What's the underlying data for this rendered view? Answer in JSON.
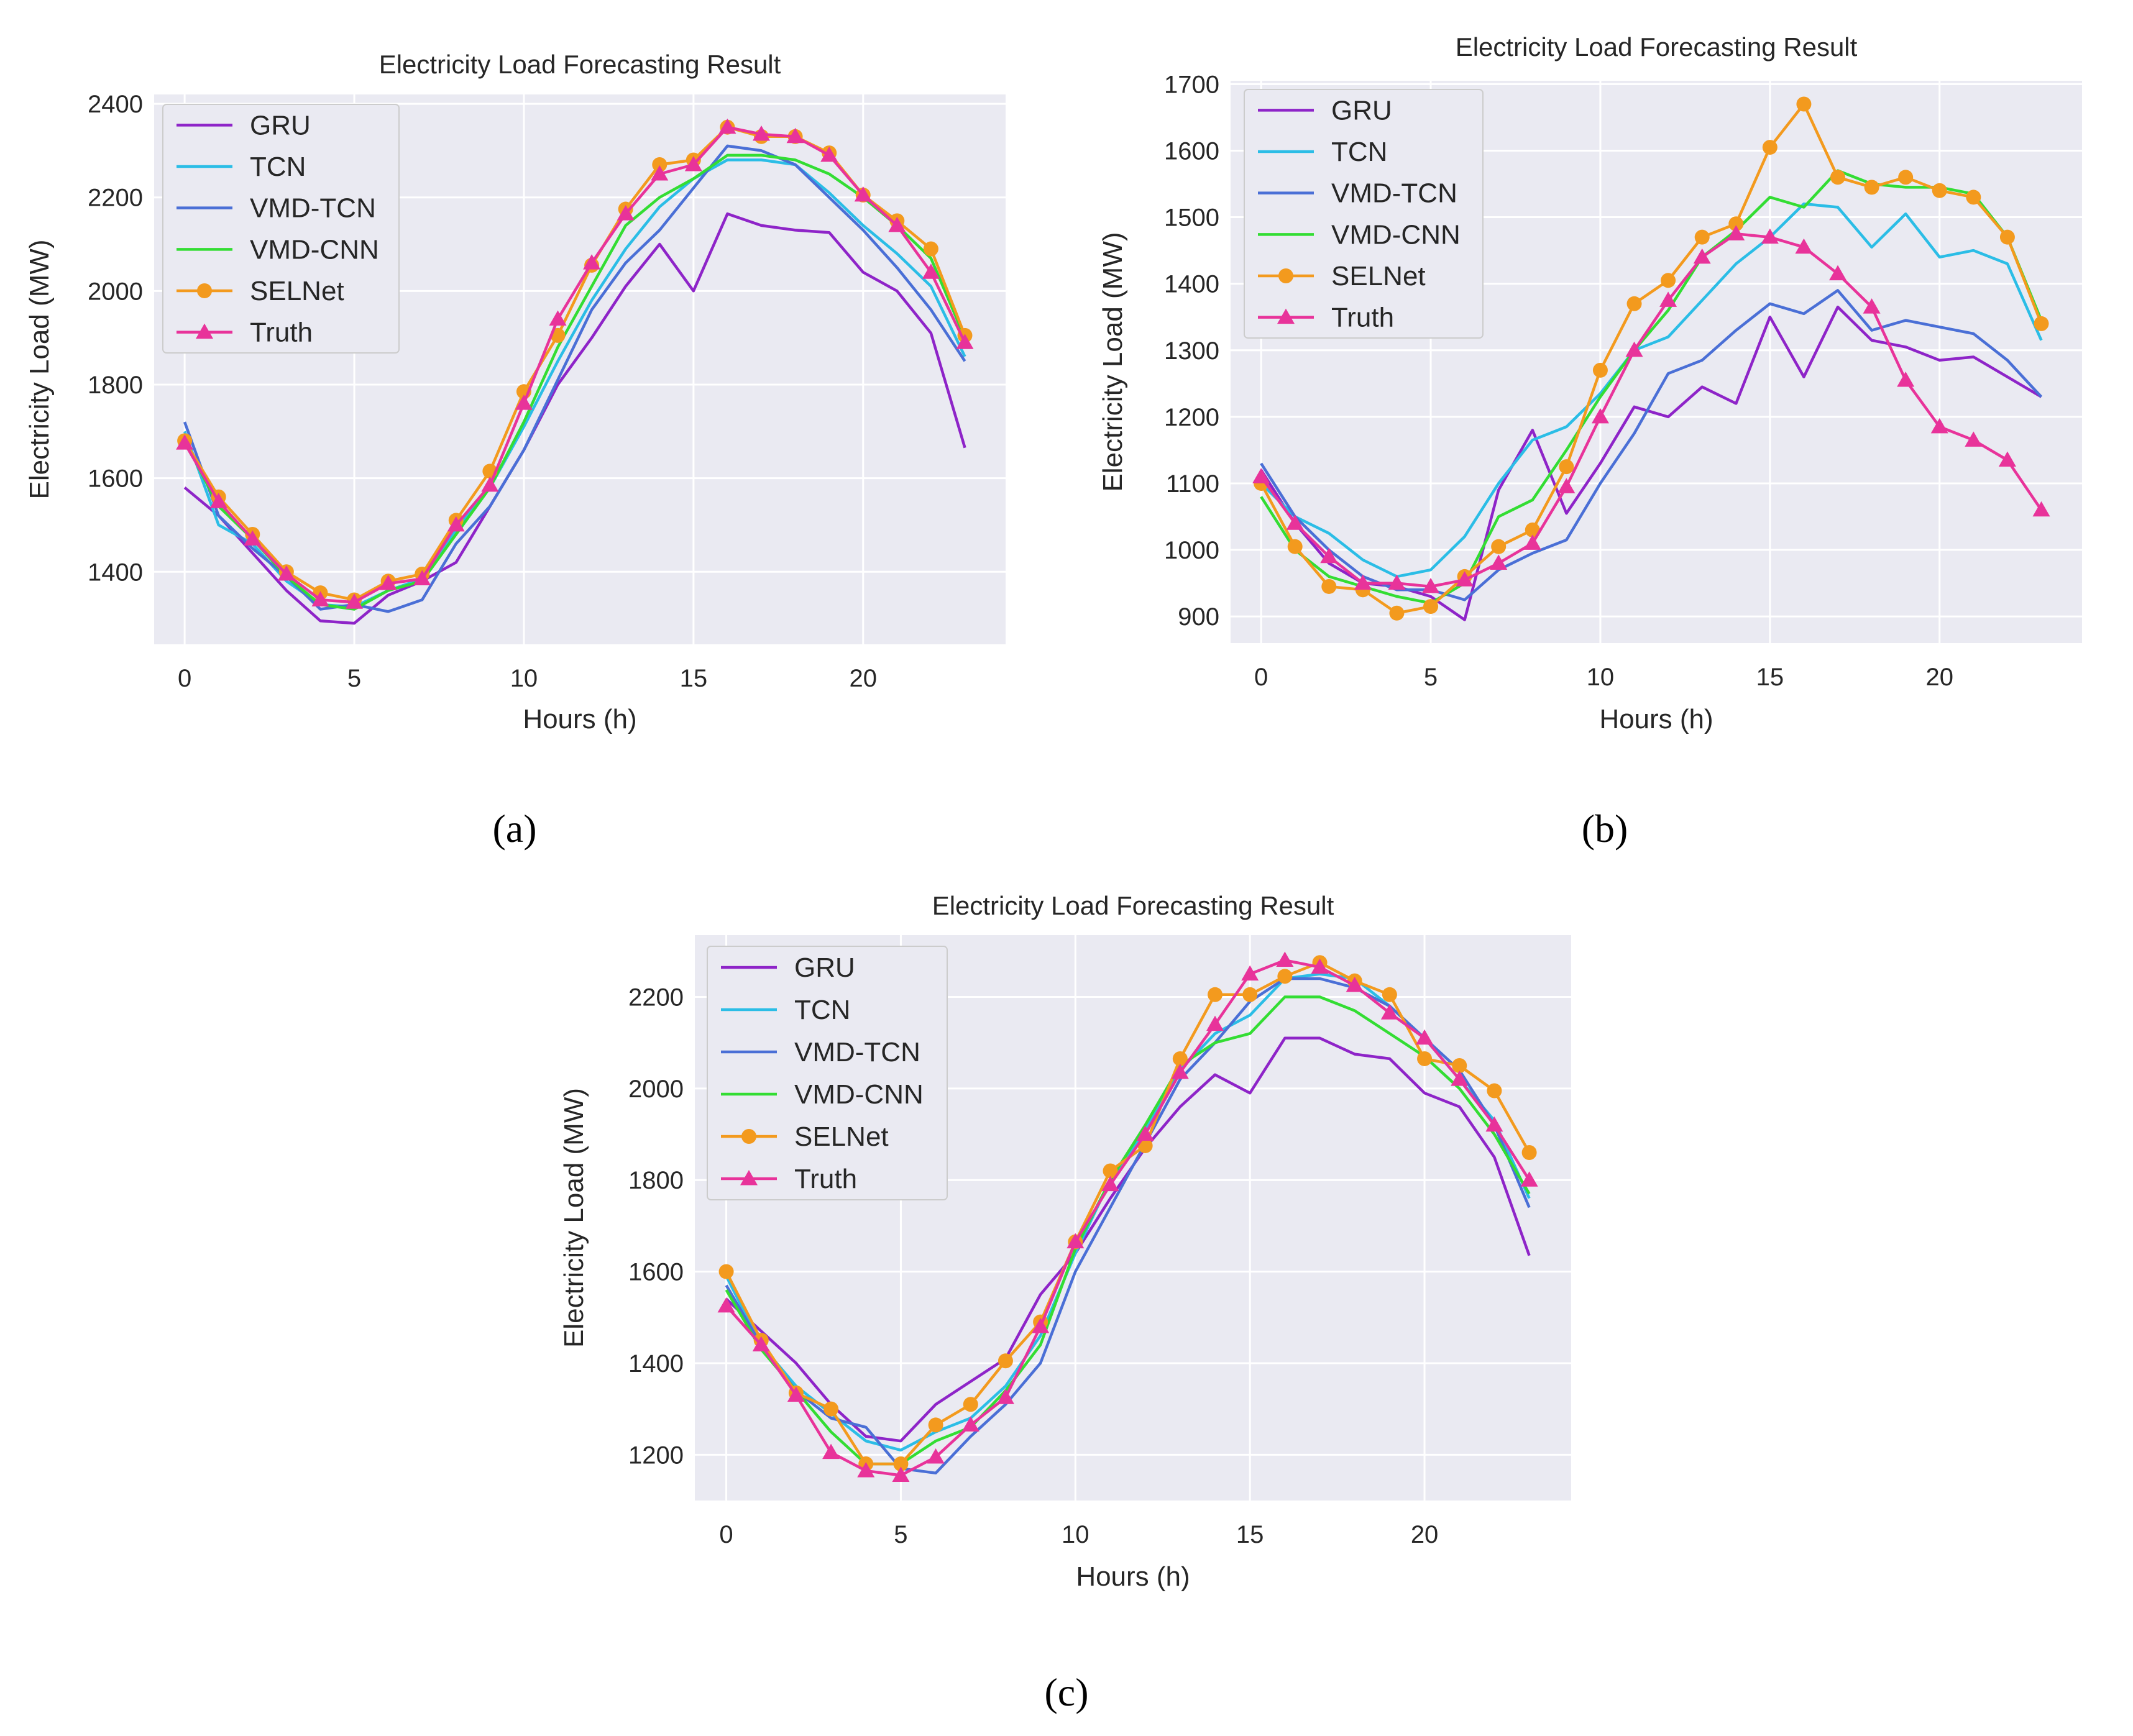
{
  "panel_labels": [
    "(a)",
    "(b)",
    "(c)"
  ],
  "colors": {
    "GRU": "#8e24c8",
    "TCN": "#2bbde6",
    "VMD-TCN": "#4a6fd6",
    "VMD-CNN": "#33dd33",
    "SELNet": "#f39a1e",
    "Truth": "#e8339a",
    "background": "#eaeaf2",
    "grid": "#ffffff"
  },
  "chart_data": [
    {
      "type": "line",
      "title": "Electricity Load Forecasting Result",
      "xlabel": "Hours (h)",
      "ylabel": "Electricity Load (MW)",
      "xlim": [
        -0.9,
        24.2
      ],
      "ylim": [
        1245,
        2420
      ],
      "xticks": [
        0,
        5,
        10,
        15,
        20
      ],
      "yticks": [
        1400,
        1600,
        1800,
        2000,
        2200,
        2400
      ],
      "x": [
        0,
        1,
        2,
        3,
        4,
        5,
        6,
        7,
        8,
        9,
        10,
        11,
        12,
        13,
        14,
        15,
        16,
        17,
        18,
        19,
        20,
        21,
        22,
        23
      ],
      "series": [
        {
          "name": "GRU",
          "marker": "none",
          "values": [
            1580,
            1520,
            1440,
            1360,
            1295,
            1290,
            1350,
            1380,
            1420,
            1540,
            1660,
            1800,
            1900,
            2010,
            2100,
            2000,
            2165,
            2140,
            2130,
            2125,
            2040,
            2000,
            1910,
            1665
          ]
        },
        {
          "name": "TCN",
          "marker": "none",
          "values": [
            1700,
            1500,
            1460,
            1380,
            1330,
            1325,
            1360,
            1385,
            1490,
            1580,
            1710,
            1850,
            1980,
            2090,
            2180,
            2240,
            2280,
            2280,
            2270,
            2210,
            2140,
            2080,
            2010,
            1860
          ]
        },
        {
          "name": "VMD-TCN",
          "marker": "none",
          "values": [
            1720,
            1520,
            1450,
            1390,
            1320,
            1330,
            1315,
            1340,
            1460,
            1540,
            1660,
            1810,
            1960,
            2060,
            2130,
            2220,
            2310,
            2300,
            2270,
            2200,
            2130,
            2050,
            1960,
            1850
          ]
        },
        {
          "name": "VMD-CNN",
          "marker": "none",
          "values": [
            1680,
            1540,
            1470,
            1390,
            1330,
            1320,
            1360,
            1380,
            1480,
            1580,
            1720,
            1880,
            2010,
            2140,
            2200,
            2240,
            2290,
            2290,
            2280,
            2250,
            2200,
            2140,
            2070,
            1900
          ]
        },
        {
          "name": "SELNet",
          "marker": "circle",
          "values": [
            1680,
            1560,
            1480,
            1400,
            1355,
            1340,
            1380,
            1395,
            1510,
            1615,
            1785,
            1905,
            2055,
            2175,
            2270,
            2280,
            2350,
            2330,
            2330,
            2295,
            2205,
            2150,
            2090,
            1905
          ]
        },
        {
          "name": "Truth",
          "marker": "triangle",
          "values": [
            1675,
            1550,
            1470,
            1395,
            1340,
            1335,
            1375,
            1385,
            1500,
            1585,
            1760,
            1940,
            2060,
            2165,
            2250,
            2270,
            2350,
            2335,
            2330,
            2290,
            2205,
            2140,
            2040,
            1890
          ]
        }
      ]
    },
    {
      "type": "line",
      "title": "Electricity Load Forecasting Result",
      "xlabel": "Hours (h)",
      "ylabel": "Electricity Load (MW)",
      "xlim": [
        -0.9,
        24.2
      ],
      "ylim": [
        860,
        1705
      ],
      "xticks": [
        0,
        5,
        10,
        15,
        20
      ],
      "yticks": [
        900,
        1000,
        1100,
        1200,
        1300,
        1400,
        1500,
        1600,
        1700
      ],
      "x": [
        0,
        1,
        2,
        3,
        4,
        5,
        6,
        7,
        8,
        9,
        10,
        11,
        12,
        13,
        14,
        15,
        16,
        17,
        18,
        19,
        20,
        21,
        22,
        23
      ],
      "series": [
        {
          "name": "GRU",
          "marker": "none",
          "values": [
            1120,
            1040,
            980,
            950,
            945,
            930,
            895,
            1090,
            1180,
            1055,
            1130,
            1215,
            1200,
            1245,
            1220,
            1350,
            1260,
            1365,
            1315,
            1305,
            1285,
            1290,
            1260,
            1230
          ]
        },
        {
          "name": "TCN",
          "marker": "none",
          "values": [
            1100,
            1050,
            1025,
            985,
            960,
            970,
            1020,
            1100,
            1165,
            1185,
            1235,
            1300,
            1320,
            1375,
            1430,
            1470,
            1520,
            1515,
            1455,
            1505,
            1440,
            1450,
            1430,
            1315
          ]
        },
        {
          "name": "VMD-TCN",
          "marker": "none",
          "values": [
            1130,
            1050,
            1000,
            960,
            940,
            940,
            925,
            970,
            995,
            1015,
            1100,
            1175,
            1265,
            1285,
            1330,
            1370,
            1355,
            1390,
            1330,
            1345,
            1335,
            1325,
            1285,
            1230
          ]
        },
        {
          "name": "VMD-CNN",
          "marker": "none",
          "values": [
            1080,
            1000,
            960,
            945,
            930,
            920,
            950,
            1050,
            1075,
            1150,
            1230,
            1300,
            1360,
            1440,
            1480,
            1530,
            1515,
            1570,
            1550,
            1545,
            1545,
            1535,
            1470,
            1345
          ]
        },
        {
          "name": "SELNet",
          "marker": "circle",
          "values": [
            1100,
            1005,
            945,
            940,
            905,
            915,
            960,
            1005,
            1030,
            1125,
            1270,
            1370,
            1405,
            1470,
            1490,
            1605,
            1670,
            1560,
            1545,
            1560,
            1540,
            1530,
            1470,
            1340
          ]
        },
        {
          "name": "Truth",
          "marker": "triangle",
          "values": [
            1110,
            1040,
            990,
            950,
            950,
            945,
            955,
            980,
            1010,
            1095,
            1200,
            1300,
            1375,
            1440,
            1475,
            1470,
            1455,
            1415,
            1365,
            1255,
            1185,
            1165,
            1135,
            1060
          ]
        }
      ]
    },
    {
      "type": "line",
      "title": "Electricity Load Forecasting Result",
      "xlabel": "Hours (h)",
      "ylabel": "Electricity Load (MW)",
      "xlim": [
        -0.9,
        24.2
      ],
      "ylim": [
        1100,
        2335
      ],
      "xticks": [
        0,
        5,
        10,
        15,
        20
      ],
      "yticks": [
        1200,
        1400,
        1600,
        1800,
        2000,
        2200
      ],
      "x": [
        0,
        1,
        2,
        3,
        4,
        5,
        6,
        7,
        8,
        9,
        10,
        11,
        12,
        13,
        14,
        15,
        16,
        17,
        18,
        19,
        20,
        21,
        22,
        23
      ],
      "series": [
        {
          "name": "GRU",
          "marker": "none",
          "values": [
            1540,
            1470,
            1400,
            1310,
            1240,
            1230,
            1310,
            1360,
            1410,
            1550,
            1640,
            1760,
            1870,
            1960,
            2030,
            1990,
            2110,
            2110,
            2075,
            2065,
            1990,
            1960,
            1850,
            1635
          ]
        },
        {
          "name": "TCN",
          "marker": "none",
          "values": [
            1590,
            1440,
            1350,
            1290,
            1230,
            1210,
            1250,
            1280,
            1350,
            1460,
            1640,
            1800,
            1910,
            2040,
            2120,
            2160,
            2240,
            2250,
            2240,
            2180,
            2110,
            2020,
            1930,
            1760
          ]
        },
        {
          "name": "VMD-TCN",
          "marker": "none",
          "values": [
            1570,
            1440,
            1340,
            1280,
            1260,
            1170,
            1160,
            1240,
            1310,
            1400,
            1600,
            1740,
            1880,
            2020,
            2100,
            2190,
            2240,
            2240,
            2220,
            2180,
            2110,
            2040,
            1920,
            1740
          ]
        },
        {
          "name": "VMD-CNN",
          "marker": "none",
          "values": [
            1560,
            1430,
            1340,
            1250,
            1180,
            1180,
            1230,
            1260,
            1340,
            1440,
            1650,
            1800,
            1920,
            2050,
            2100,
            2120,
            2200,
            2200,
            2170,
            2120,
            2070,
            2000,
            1900,
            1770
          ]
        },
        {
          "name": "SELNet",
          "marker": "circle",
          "values": [
            1600,
            1450,
            1335,
            1300,
            1180,
            1180,
            1265,
            1310,
            1405,
            1490,
            1665,
            1820,
            1875,
            2065,
            2205,
            2205,
            2245,
            2275,
            2235,
            2205,
            2065,
            2050,
            1995,
            1860
          ]
        },
        {
          "name": "Truth",
          "marker": "triangle",
          "values": [
            1525,
            1440,
            1330,
            1205,
            1165,
            1155,
            1195,
            1265,
            1325,
            1480,
            1665,
            1790,
            1900,
            2035,
            2140,
            2250,
            2280,
            2265,
            2225,
            2165,
            2110,
            2020,
            1920,
            1800
          ]
        }
      ]
    }
  ]
}
